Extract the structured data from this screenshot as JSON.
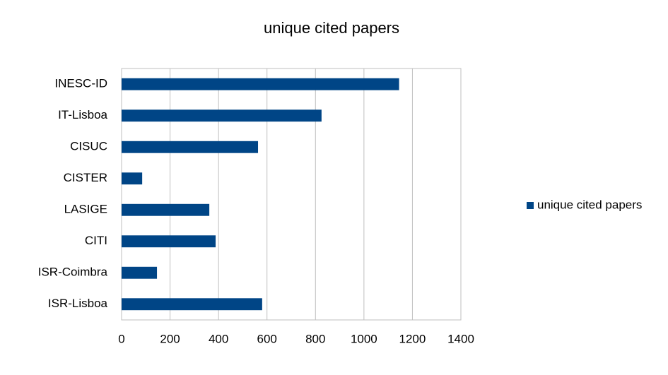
{
  "chart_data": {
    "type": "bar",
    "orientation": "horizontal",
    "title": "unique cited papers",
    "categories": [
      "INESC-ID",
      "IT-Lisboa",
      "CISUC",
      "CISTER",
      "LASIGE",
      "CITI",
      "ISR-Coimbra",
      "ISR-Lisboa"
    ],
    "series": [
      {
        "name": "unique cited papers",
        "color": "#004586",
        "values": [
          1145,
          825,
          563,
          85,
          362,
          388,
          146,
          580
        ]
      }
    ],
    "xlim": [
      0,
      1400
    ],
    "xticks": [
      0,
      200,
      400,
      600,
      800,
      1000,
      1200,
      1400
    ],
    "grid": true,
    "legend": "right"
  }
}
